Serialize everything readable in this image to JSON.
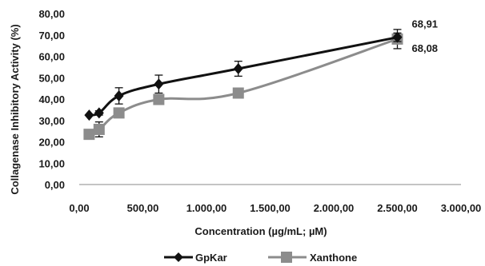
{
  "chart_data": {
    "type": "line",
    "xlabel": "Concentration (µg/mL; µM)",
    "ylabel": "Collagenase Inhibitory Activity (%)",
    "xlim": [
      0,
      3000
    ],
    "ylim": [
      0,
      80
    ],
    "x_ticks": [
      "0,00",
      "500,00",
      "1.000,00",
      "1.500,00",
      "2.000,00",
      "2.500,00",
      "3.000,00"
    ],
    "y_ticks": [
      "0,00",
      "10,00",
      "20,00",
      "30,00",
      "40,00",
      "50,00",
      "60,00",
      "70,00",
      "80,00"
    ],
    "x_tick_values": [
      0,
      500,
      1000,
      1500,
      2000,
      2500,
      3000
    ],
    "y_tick_values": [
      0,
      10,
      20,
      30,
      40,
      50,
      60,
      70,
      80
    ],
    "grid": false,
    "legend_position": "bottom",
    "series": [
      {
        "name": "GpKar",
        "color": "#111111",
        "marker": "diamond",
        "x": [
          78,
          156,
          312,
          625,
          1250,
          2500
        ],
        "y": [
          32.5,
          33.5,
          41.5,
          47.0,
          54.2,
          68.91
        ],
        "err": [
          0,
          1.0,
          3.8,
          4.2,
          3.5,
          2.0
        ]
      },
      {
        "name": "Xanthone",
        "color": "#8c8c8c",
        "marker": "square",
        "x": [
          78,
          156,
          312,
          625,
          1250,
          2500
        ],
        "y": [
          23.5,
          25.8,
          33.5,
          39.8,
          42.8,
          68.08
        ],
        "err": [
          0,
          3.5,
          1.0,
          1.2,
          0,
          4.5
        ]
      }
    ],
    "data_labels": [
      {
        "text": "68,91",
        "series": 0,
        "point": 5
      },
      {
        "text": "68,08",
        "series": 1,
        "point": 5
      }
    ]
  }
}
